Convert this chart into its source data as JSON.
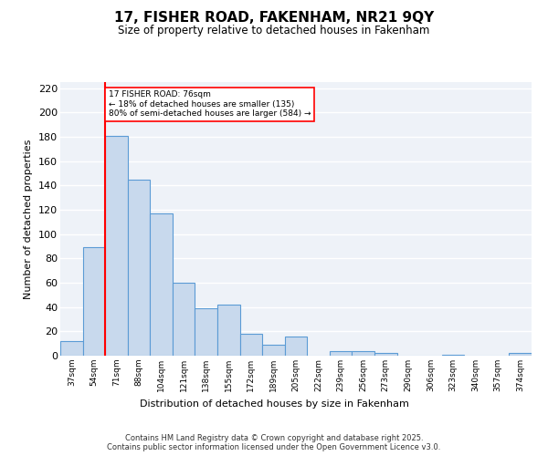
{
  "title": "17, FISHER ROAD, FAKENHAM, NR21 9QY",
  "subtitle": "Size of property relative to detached houses in Fakenham",
  "xlabel": "Distribution of detached houses by size in Fakenham",
  "ylabel": "Number of detached properties",
  "categories": [
    "37sqm",
    "54sqm",
    "71sqm",
    "88sqm",
    "104sqm",
    "121sqm",
    "138sqm",
    "155sqm",
    "172sqm",
    "189sqm",
    "205sqm",
    "222sqm",
    "239sqm",
    "256sqm",
    "273sqm",
    "290sqm",
    "306sqm",
    "323sqm",
    "340sqm",
    "357sqm",
    "374sqm"
  ],
  "values": [
    12,
    89,
    181,
    145,
    117,
    60,
    39,
    42,
    18,
    9,
    16,
    0,
    4,
    4,
    2,
    0,
    0,
    1,
    0,
    0,
    2
  ],
  "bar_color": "#c8d9ed",
  "bar_edge_color": "#5b9bd5",
  "red_line_index": 2,
  "annotation_text": "17 FISHER ROAD: 76sqm\n← 18% of detached houses are smaller (135)\n80% of semi-detached houses are larger (584) →",
  "annotation_box_color": "white",
  "annotation_box_edge_color": "red",
  "red_line_color": "red",
  "ylim": [
    0,
    225
  ],
  "yticks": [
    0,
    20,
    40,
    60,
    80,
    100,
    120,
    140,
    160,
    180,
    200,
    220
  ],
  "background_color": "#eef2f8",
  "grid_color": "white",
  "footer_line1": "Contains HM Land Registry data © Crown copyright and database right 2025.",
  "footer_line2": "Contains public sector information licensed under the Open Government Licence v3.0."
}
